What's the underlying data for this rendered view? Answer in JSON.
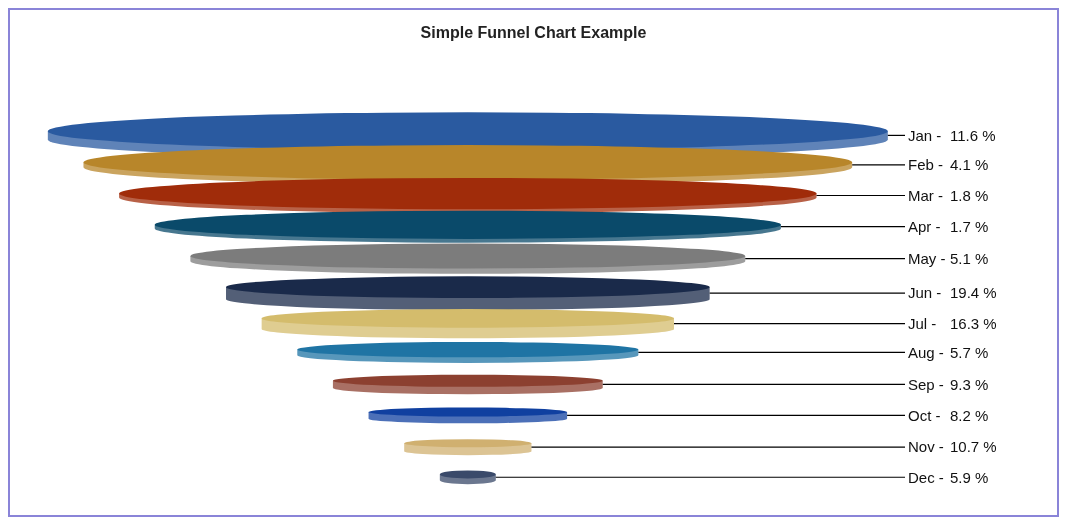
{
  "chart_data": {
    "type": "other",
    "title": "Simple Funnel Chart Example",
    "categories": [
      "Jan -",
      "Feb -",
      "Mar -",
      "Apr -",
      "May -",
      "Jun -",
      "Jul -",
      "Aug -",
      "Sep -",
      "Oct -",
      "Nov -",
      "Dec -"
    ],
    "values": [
      11.6,
      4.1,
      1.8,
      1.7,
      5.1,
      19.4,
      16.3,
      5.7,
      9.3,
      8.2,
      10.7,
      5.9
    ],
    "value_labels": [
      "11.6 %",
      "4.1 %",
      "1.8 %",
      "1.7 %",
      "5.1 %",
      "19.4 %",
      "16.3 %",
      "5.7 %",
      "9.3 %",
      "8.2 %",
      "10.7 %",
      "5.9 %"
    ],
    "colors": [
      "#2a5aa0",
      "#b8862a",
      "#a02c0a",
      "#0a4a6a",
      "#7c7c7c",
      "#1a2a4a",
      "#d4bc6c",
      "#1f74a4",
      "#8c4030",
      "#1040a0",
      "#d0b070",
      "#3a4a6a"
    ]
  }
}
